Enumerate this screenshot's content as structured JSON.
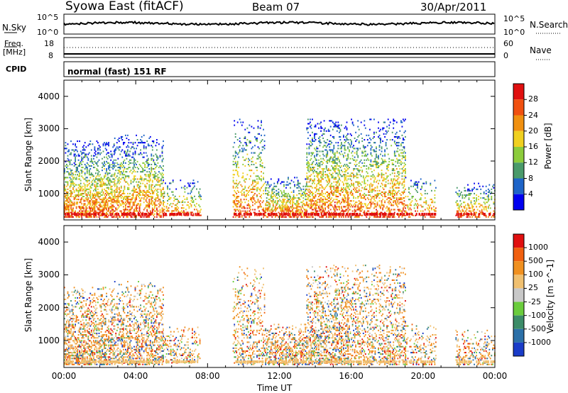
{
  "header": {
    "station": "Syowa East (fitACF)",
    "beam": "Beam 07",
    "date": "30/Apr/2011"
  },
  "top_panels": {
    "nsky_label": "N.Sky",
    "nsky_ticks": [
      "10^5",
      "10^0"
    ],
    "nsearch_label": "N.Search",
    "nsearch_ticks": [
      "10^5",
      "10^0"
    ],
    "freq_label": "Freq.",
    "freq_unit": "[MHz]",
    "freq_ticks": [
      "18",
      "8"
    ],
    "nave_label": "Nave",
    "nave_ticks": [
      "60",
      "0"
    ],
    "cpid_label": "CPID",
    "cpid_text": "normal (fast) 151 RF"
  },
  "chart_data": [
    {
      "type": "heatmap",
      "panel": "power",
      "ylabel": "Slant Range [km]",
      "yticks": [
        "1000",
        "2000",
        "3000",
        "4000"
      ],
      "ylim": [
        180,
        4500
      ],
      "xlim_hours": [
        0,
        24
      ],
      "colorbar_label": "Power [dB]",
      "colorbar_ticks": [
        "4",
        "8",
        "12",
        "16",
        "20",
        "24",
        "28"
      ],
      "colors": [
        "#0000f0",
        "#1e64c8",
        "#4a9a6a",
        "#8ccc3c",
        "#f0d020",
        "#f09010",
        "#f05010",
        "#e01010"
      ]
    },
    {
      "type": "heatmap",
      "panel": "velocity",
      "ylabel": "Slant Range [km]",
      "yticks": [
        "1000",
        "2000",
        "3000",
        "4000"
      ],
      "ylim": [
        180,
        4500
      ],
      "xlim_hours": [
        0,
        24
      ],
      "colorbar_label": "Velocity [m s^-1]",
      "colorbar_ticks": [
        "1000",
        "500",
        "100",
        "25",
        "-25",
        "-100",
        "-500",
        "-1000"
      ],
      "colors": [
        "#1a3cc8",
        "#2c70a8",
        "#3c8c68",
        "#6acc3c",
        "#c8c8c8",
        "#f0c070",
        "#f09020",
        "#f06010",
        "#e01010"
      ]
    }
  ],
  "x_axis": {
    "ticks": [
      "00:00",
      "04:00",
      "08:00",
      "12:00",
      "16:00",
      "20:00",
      "00:00"
    ],
    "label": "Time UT"
  }
}
